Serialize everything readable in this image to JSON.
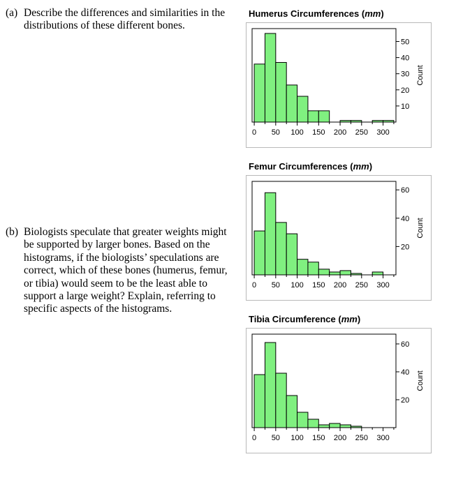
{
  "questions": [
    {
      "label": "(a)",
      "text": "Describe the differences and similarities in the distributions of these different bones."
    },
    {
      "label": "(b)",
      "text": "Biologists speculate that greater weights might be supported by larger bones.  Based on the histograms, if the biologists’ speculations are correct, which of these bones (humerus, femur, or tibia) would seem to be the least able to support a large weight?  Explain, referring to specific aspects of the histograms."
    }
  ],
  "chart_data": [
    {
      "type": "bar",
      "title": "Humerus Circumferences",
      "title_unit": "mm",
      "ylabel": "Count",
      "bin_width": 25,
      "bins_start": [
        0,
        25,
        50,
        75,
        100,
        125,
        150,
        175,
        200,
        225,
        250,
        275,
        300
      ],
      "values": [
        36,
        55,
        37,
        23,
        16,
        7,
        7,
        0,
        1,
        1,
        0,
        1,
        1
      ],
      "xlim": [
        -5,
        330
      ],
      "ylim": [
        0,
        58
      ],
      "xticks": [
        0,
        50,
        100,
        150,
        200,
        250,
        300
      ],
      "yticks": [
        10,
        20,
        30,
        40,
        50
      ],
      "bar_color": "#80f080"
    },
    {
      "type": "bar",
      "title": "Femur Circumferences",
      "title_unit": "mm",
      "ylabel": "Count",
      "bin_width": 25,
      "bins_start": [
        0,
        25,
        50,
        75,
        100,
        125,
        150,
        175,
        200,
        225,
        250,
        275,
        300
      ],
      "values": [
        31,
        58,
        37,
        29,
        11,
        9,
        4,
        2,
        3,
        1,
        0,
        2,
        0
      ],
      "xlim": [
        -5,
        330
      ],
      "ylim": [
        0,
        66
      ],
      "xticks": [
        0,
        50,
        100,
        150,
        200,
        250,
        300
      ],
      "yticks": [
        20,
        40,
        60
      ],
      "bar_color": "#80f080"
    },
    {
      "type": "bar",
      "title": "Tibia Circumference",
      "title_unit": "mm",
      "ylabel": "Count",
      "bin_width": 25,
      "bins_start": [
        0,
        25,
        50,
        75,
        100,
        125,
        150,
        175,
        200,
        225,
        250,
        275,
        300
      ],
      "values": [
        38,
        61,
        39,
        23,
        11,
        6,
        2,
        3,
        2,
        1,
        0,
        0,
        0
      ],
      "xlim": [
        -5,
        330
      ],
      "ylim": [
        0,
        67
      ],
      "xticks": [
        0,
        50,
        100,
        150,
        200,
        250,
        300
      ],
      "yticks": [
        20,
        40,
        60
      ],
      "bar_color": "#80f080"
    }
  ]
}
